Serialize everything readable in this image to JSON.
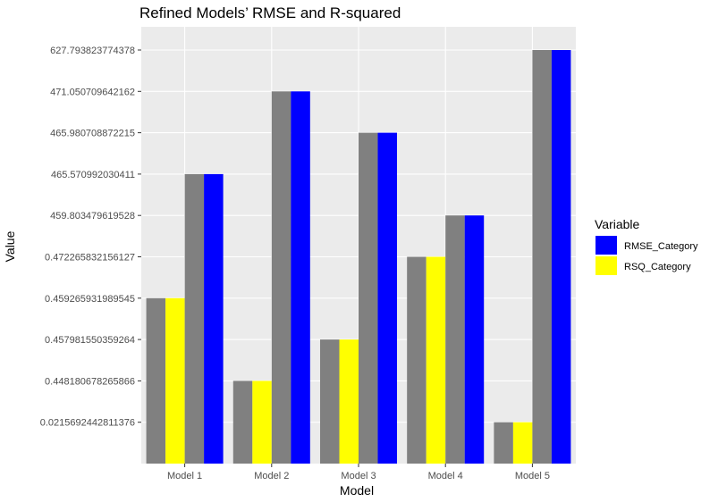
{
  "chart_data": {
    "type": "bar",
    "title": "Refined Models’ RMSE and R-squared",
    "xlabel": "Model",
    "ylabel": "Value",
    "categories": [
      "Model 1",
      "Model 2",
      "Model 3",
      "Model 4",
      "Model 5"
    ],
    "y_scale": "discrete",
    "y_levels": [
      "0.0215692442811376",
      "0.448180678265866",
      "0.457981550359264",
      "0.459265931989545",
      "0.472265832156127",
      "459.803479619528",
      "465.570992030411",
      "465.980708872215",
      "471.050709642162",
      "627.793823774378"
    ],
    "ylim": [
      0,
      10
    ],
    "grid": true,
    "legend": {
      "title": "Variable",
      "position": "right",
      "entries": [
        {
          "name": "RMSE_Category",
          "color": "#0000ff"
        },
        {
          "name": "RSQ_Category",
          "color": "#ffff00"
        }
      ]
    },
    "bar_groups": [
      {
        "name": "",
        "color": "#808080"
      },
      {
        "name": "RSQ_Category",
        "color": "#ffff00"
      },
      {
        "name": "",
        "color": "#808080"
      },
      {
        "name": "RMSE_Category",
        "color": "#0000ff"
      }
    ],
    "series": [
      {
        "name": "",
        "color": "#808080",
        "values": [
          4,
          2,
          3,
          5,
          1
        ]
      },
      {
        "name": "RSQ_Category",
        "color": "#ffff00",
        "values": [
          4,
          2,
          3,
          5,
          1
        ]
      },
      {
        "name": "",
        "color": "#808080",
        "values": [
          7,
          9,
          8,
          6,
          10
        ]
      },
      {
        "name": "RMSE_Category",
        "color": "#0000ff",
        "values": [
          7,
          9,
          8,
          6,
          10
        ]
      }
    ],
    "panel_background": "#ebebeb",
    "grid_color": "#ffffff"
  }
}
